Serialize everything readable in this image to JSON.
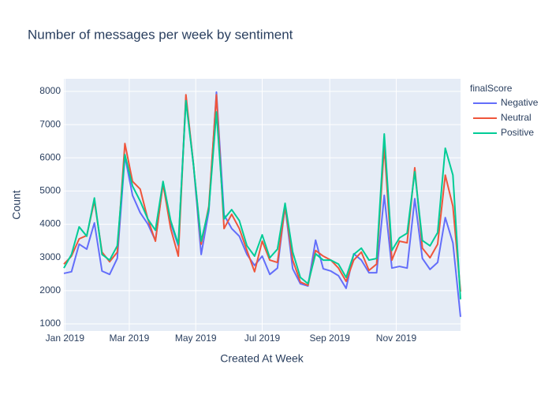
{
  "chart_data": {
    "type": "line",
    "title": "Number of messages per week by sentiment",
    "x_label": "Created At Week",
    "y_label": "Count",
    "legend_title": "finalScore",
    "legend_position": "right",
    "grid": true,
    "x": [
      "2018-12-31",
      "2019-01-07",
      "2019-01-14",
      "2019-01-21",
      "2019-01-28",
      "2019-02-04",
      "2019-02-11",
      "2019-02-18",
      "2019-02-25",
      "2019-03-04",
      "2019-03-11",
      "2019-03-18",
      "2019-03-25",
      "2019-04-01",
      "2019-04-08",
      "2019-04-15",
      "2019-04-22",
      "2019-04-29",
      "2019-05-06",
      "2019-05-13",
      "2019-05-20",
      "2019-05-27",
      "2019-06-03",
      "2019-06-10",
      "2019-06-17",
      "2019-06-24",
      "2019-07-01",
      "2019-07-08",
      "2019-07-15",
      "2019-07-22",
      "2019-07-29",
      "2019-08-05",
      "2019-08-12",
      "2019-08-19",
      "2019-08-26",
      "2019-09-02",
      "2019-09-09",
      "2019-09-16",
      "2019-09-23",
      "2019-09-30",
      "2019-10-07",
      "2019-10-14",
      "2019-10-21",
      "2019-10-28",
      "2019-11-04",
      "2019-11-11",
      "2019-11-18",
      "2019-11-25",
      "2019-12-02",
      "2019-12-09",
      "2019-12-16",
      "2019-12-23",
      "2019-12-30"
    ],
    "xlim": [
      "2018-12-31",
      "2019-12-30"
    ],
    "xticks": [
      {
        "value": "2019-01-01",
        "label": "Jan 2019"
      },
      {
        "value": "2019-03-01",
        "label": "Mar 2019"
      },
      {
        "value": "2019-05-01",
        "label": "May 2019"
      },
      {
        "value": "2019-07-01",
        "label": "Jul 2019"
      },
      {
        "value": "2019-09-01",
        "label": "Sep 2019"
      },
      {
        "value": "2019-11-01",
        "label": "Nov 2019"
      }
    ],
    "ylim": [
      786,
      8380
    ],
    "yticks": [
      1000,
      2000,
      3000,
      4000,
      5000,
      6000,
      7000,
      8000
    ],
    "series": [
      {
        "name": "Negative",
        "color": "#636efa",
        "values": [
          2520,
          2570,
          3400,
          3250,
          4040,
          2590,
          2490,
          2970,
          6050,
          4870,
          4350,
          4010,
          3510,
          5250,
          4040,
          3350,
          7810,
          5770,
          3090,
          4390,
          7980,
          4280,
          3870,
          3640,
          3090,
          2760,
          3040,
          2490,
          2680,
          4540,
          2660,
          2210,
          2140,
          3520,
          2660,
          2590,
          2450,
          2070,
          3110,
          2920,
          2540,
          2540,
          4870,
          2680,
          2730,
          2680,
          4770,
          2970,
          2640,
          2850,
          4200,
          3440,
          1210
        ]
      },
      {
        "name": "Neutral",
        "color": "#ef553b",
        "values": [
          2800,
          3040,
          3560,
          3660,
          4700,
          3160,
          2870,
          3160,
          6430,
          5290,
          5060,
          4160,
          3490,
          5220,
          3870,
          3040,
          7900,
          5770,
          3400,
          4540,
          7900,
          3870,
          4300,
          3870,
          3210,
          2570,
          3490,
          2920,
          2850,
          4540,
          2920,
          2260,
          2160,
          3210,
          3040,
          2920,
          2680,
          2280,
          2920,
          3160,
          2610,
          2800,
          6360,
          2920,
          3490,
          3440,
          5700,
          3280,
          2990,
          3400,
          5480,
          4540,
          1970
        ]
      },
      {
        "name": "Positive",
        "color": "#00cc96",
        "values": [
          2680,
          3090,
          3920,
          3640,
          4790,
          3090,
          2920,
          3350,
          6100,
          5150,
          4700,
          4160,
          3820,
          5290,
          4110,
          3400,
          7720,
          5770,
          3490,
          4460,
          7380,
          4160,
          4440,
          4110,
          3350,
          3040,
          3680,
          2990,
          3250,
          4630,
          3160,
          2400,
          2210,
          3110,
          2920,
          2920,
          2800,
          2400,
          3090,
          3280,
          2920,
          2970,
          6720,
          3210,
          3590,
          3730,
          5580,
          3510,
          3350,
          3750,
          6290,
          5480,
          1740
        ]
      }
    ]
  }
}
